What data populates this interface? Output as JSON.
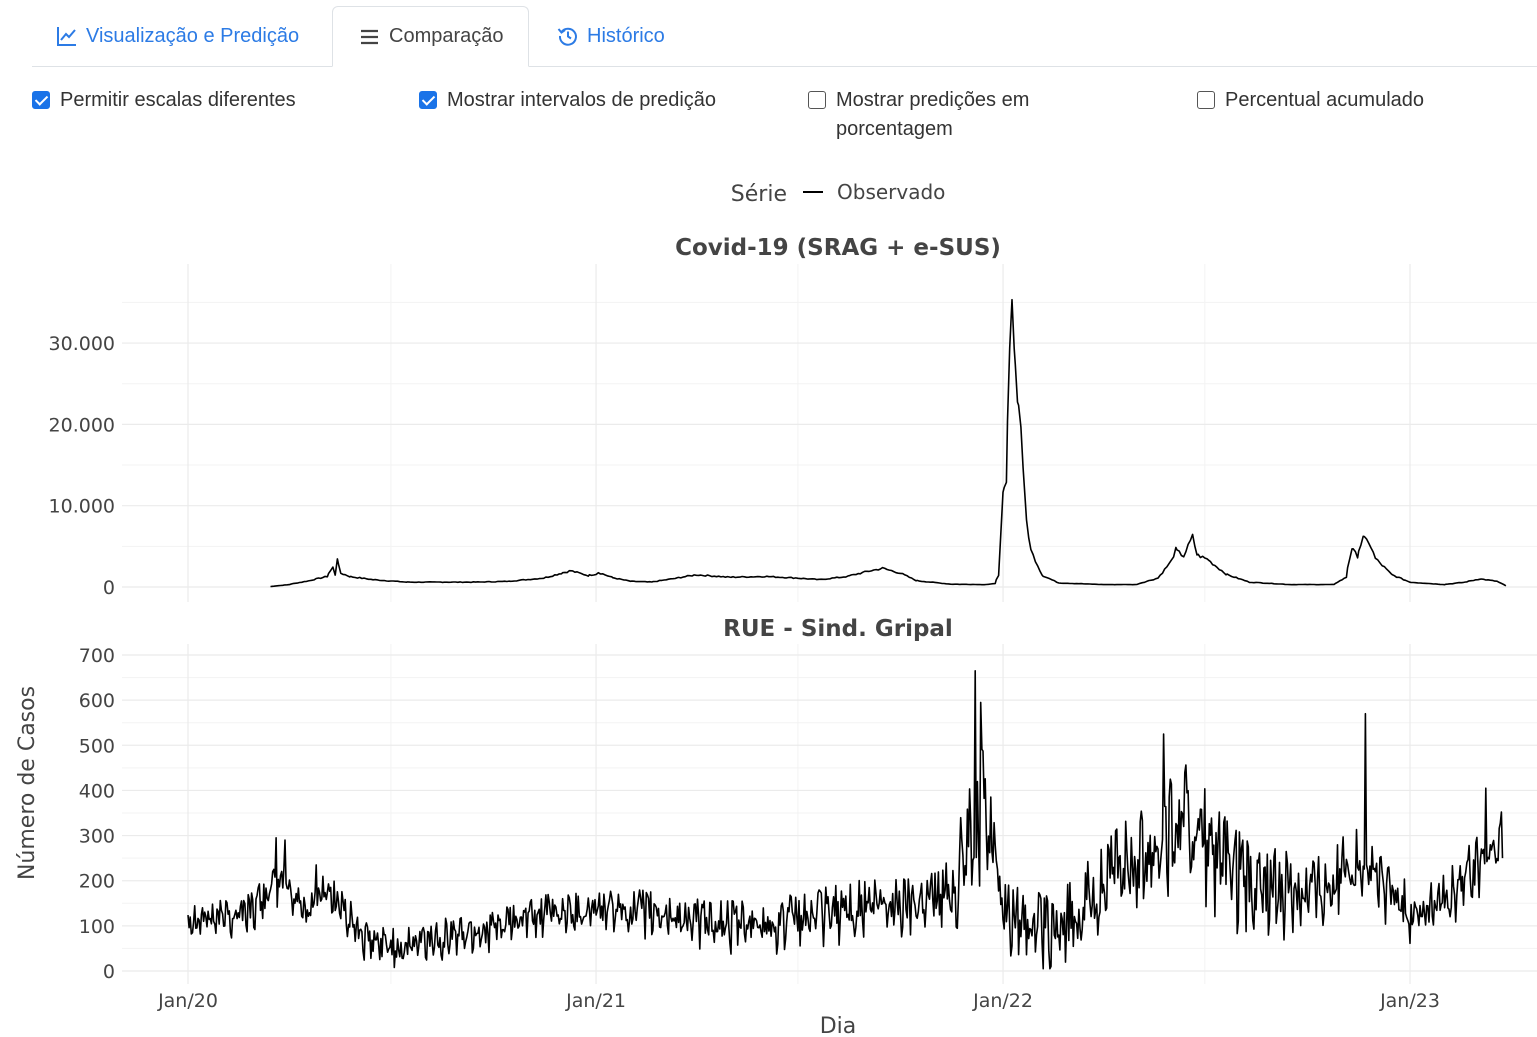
{
  "tabs": [
    {
      "label": "Visualização e Predição",
      "icon": "line-chart-icon",
      "active": false
    },
    {
      "label": "Comparação",
      "icon": "list-icon",
      "active": true
    },
    {
      "label": "Histórico",
      "icon": "history-icon",
      "active": false
    }
  ],
  "options": [
    {
      "label": "Permitir escalas diferentes",
      "checked": true
    },
    {
      "label": "Mostrar intervalos de predição",
      "checked": true
    },
    {
      "label_line1": "Mostrar predições em",
      "label_line2": "porcentagem",
      "checked": false
    },
    {
      "label": "Percentual acumulado",
      "checked": false
    }
  ],
  "colors": {
    "accent": "#2c7be5",
    "checkbox": "#1a73e8",
    "line": "#000000",
    "grid": "#ebebeb"
  },
  "chart_data": {
    "type": "line",
    "legend": {
      "title": "Série",
      "entries": [
        "Observado"
      ],
      "placement": "top-center"
    },
    "xlabel": "Dia",
    "ylabel": "Número de Casos",
    "x_ticks": [
      "Jan/20",
      "Jan/21",
      "Jan/22",
      "Jan/23"
    ],
    "x_range": [
      "2020-01-01",
      "2023-04-30"
    ],
    "grid": true,
    "panels": [
      {
        "title": "Covid-19 (SRAG + e-SUS)",
        "ylim": [
          0,
          38000
        ],
        "y_ticks": [
          0,
          10000,
          20000,
          30000
        ],
        "y_tick_labels": [
          "0",
          "10.000",
          "20.000",
          "30.000"
        ],
        "series": [
          {
            "name": "Observado",
            "points": [
              [
                "2020-03-15",
                50
              ],
              [
                "2020-04-01",
                300
              ],
              [
                "2020-04-20",
                800
              ],
              [
                "2020-05-05",
                1300
              ],
              [
                "2020-05-10",
                2400
              ],
              [
                "2020-05-12",
                1500
              ],
              [
                "2020-05-14",
                3600
              ],
              [
                "2020-05-17",
                1700
              ],
              [
                "2020-05-25",
                1300
              ],
              [
                "2020-06-15",
                900
              ],
              [
                "2020-07-15",
                600
              ],
              [
                "2020-08-15",
                600
              ],
              [
                "2020-09-15",
                600
              ],
              [
                "2020-10-15",
                700
              ],
              [
                "2020-11-15",
                1100
              ],
              [
                "2020-12-01",
                1700
              ],
              [
                "2020-12-10",
                2000
              ],
              [
                "2020-12-25",
                1400
              ],
              [
                "2021-01-01",
                1600
              ],
              [
                "2021-01-03",
                1800
              ],
              [
                "2021-01-15",
                1200
              ],
              [
                "2021-02-01",
                700
              ],
              [
                "2021-02-20",
                600
              ],
              [
                "2021-03-15",
                1100
              ],
              [
                "2021-04-01",
                1500
              ],
              [
                "2021-05-01",
                1200
              ],
              [
                "2021-06-01",
                1300
              ],
              [
                "2021-07-01",
                1100
              ],
              [
                "2021-07-20",
                900
              ],
              [
                "2021-08-15",
                1300
              ],
              [
                "2021-09-01",
                1900
              ],
              [
                "2021-09-15",
                2300
              ],
              [
                "2021-10-01",
                1700
              ],
              [
                "2021-10-15",
                800
              ],
              [
                "2021-11-15",
                350
              ],
              [
                "2021-12-15",
                300
              ],
              [
                "2021-12-25",
                400
              ],
              [
                "2021-12-28",
                1500
              ],
              [
                "2022-01-01",
                11000
              ],
              [
                "2022-01-04",
                12500
              ],
              [
                "2022-01-07",
                28000
              ],
              [
                "2022-01-09",
                37500
              ],
              [
                "2022-01-11",
                30000
              ],
              [
                "2022-01-14",
                24000
              ],
              [
                "2022-01-17",
                20000
              ],
              [
                "2022-01-21",
                10000
              ],
              [
                "2022-01-26",
                4500
              ],
              [
                "2022-02-05",
                1500
              ],
              [
                "2022-02-20",
                500
              ],
              [
                "2022-04-01",
                300
              ],
              [
                "2022-05-01",
                300
              ],
              [
                "2022-05-20",
                1100
              ],
              [
                "2022-06-01",
                3200
              ],
              [
                "2022-06-05",
                4600
              ],
              [
                "2022-06-12",
                3800
              ],
              [
                "2022-06-16",
                5000
              ],
              [
                "2022-06-20",
                6200
              ],
              [
                "2022-06-24",
                4000
              ],
              [
                "2022-07-05",
                3300
              ],
              [
                "2022-07-20",
                1600
              ],
              [
                "2022-08-10",
                600
              ],
              [
                "2022-09-15",
                300
              ],
              [
                "2022-10-25",
                300
              ],
              [
                "2022-11-05",
                1200
              ],
              [
                "2022-11-10",
                4800
              ],
              [
                "2022-11-15",
                3800
              ],
              [
                "2022-11-20",
                6000
              ],
              [
                "2022-11-25",
                5600
              ],
              [
                "2022-12-01",
                3500
              ],
              [
                "2022-12-15",
                1600
              ],
              [
                "2023-01-01",
                600
              ],
              [
                "2023-02-01",
                300
              ],
              [
                "2023-02-20",
                600
              ],
              [
                "2023-03-05",
                1000
              ],
              [
                "2023-03-20",
                700
              ],
              [
                "2023-03-28",
                150
              ]
            ]
          }
        ]
      },
      {
        "title": "RUE - Sind. Gripal",
        "ylim": [
          0,
          700
        ],
        "y_ticks": [
          0,
          100,
          200,
          300,
          400,
          500,
          600,
          700
        ],
        "y_tick_labels": [
          "0",
          "100",
          "200",
          "300",
          "400",
          "500",
          "600",
          "700"
        ],
        "series": [
          {
            "name": "Observado",
            "start": "2020-01-01",
            "end": "2023-03-25",
            "level_points": [
              [
                "2020-01-01",
                130
              ],
              [
                "2020-02-01",
                125
              ],
              [
                "2020-03-01",
                150
              ],
              [
                "2020-03-25",
                210
              ],
              [
                "2020-04-15",
                140
              ],
              [
                "2020-05-05",
                190
              ],
              [
                "2020-05-20",
                140
              ],
              [
                "2020-06-10",
                70
              ],
              [
                "2020-07-15",
                60
              ],
              [
                "2020-08-15",
                85
              ],
              [
                "2020-10-01",
                100
              ],
              [
                "2020-11-15",
                135
              ],
              [
                "2021-01-01",
                145
              ],
              [
                "2021-02-15",
                140
              ],
              [
                "2021-04-01",
                120
              ],
              [
                "2021-05-15",
                110
              ],
              [
                "2021-07-01",
                125
              ],
              [
                "2021-08-15",
                150
              ],
              [
                "2021-10-01",
                160
              ],
              [
                "2021-11-15",
                190
              ],
              [
                "2021-12-05",
                340
              ],
              [
                "2021-12-15",
                400
              ],
              [
                "2021-12-25",
                270
              ],
              [
                "2022-01-05",
                140
              ],
              [
                "2022-01-25",
                130
              ],
              [
                "2022-02-15",
                90
              ],
              [
                "2022-03-15",
                160
              ],
              [
                "2022-04-15",
                240
              ],
              [
                "2022-05-15",
                300
              ],
              [
                "2022-06-15",
                360
              ],
              [
                "2022-07-15",
                260
              ],
              [
                "2022-08-15",
                190
              ],
              [
                "2022-09-15",
                200
              ],
              [
                "2022-10-15",
                200
              ],
              [
                "2022-11-15",
                260
              ],
              [
                "2022-12-10",
                200
              ],
              [
                "2023-01-01",
                140
              ],
              [
                "2023-02-01",
                160
              ],
              [
                "2023-03-01",
                240
              ],
              [
                "2023-03-25",
                300
              ]
            ],
            "amplitude_points": [
              [
                "2020-01-01",
                35
              ],
              [
                "2020-12-01",
                35
              ],
              [
                "2021-06-01",
                45
              ],
              [
                "2021-11-01",
                55
              ],
              [
                "2021-12-10",
                110
              ],
              [
                "2022-01-10",
                60
              ],
              [
                "2022-03-01",
                70
              ],
              [
                "2022-06-15",
                110
              ],
              [
                "2022-09-01",
                75
              ],
              [
                "2023-01-01",
                50
              ],
              [
                "2023-03-25",
                60
              ]
            ],
            "peaks": [
              [
                "2020-03-20",
                295
              ],
              [
                "2020-03-28",
                290
              ],
              [
                "2020-04-25",
                235
              ],
              [
                "2021-12-07",
                665
              ],
              [
                "2021-12-12",
                595
              ],
              [
                "2022-05-25",
                525
              ],
              [
                "2022-11-22",
                570
              ],
              [
                "2023-03-10",
                405
              ]
            ]
          }
        ]
      }
    ]
  }
}
